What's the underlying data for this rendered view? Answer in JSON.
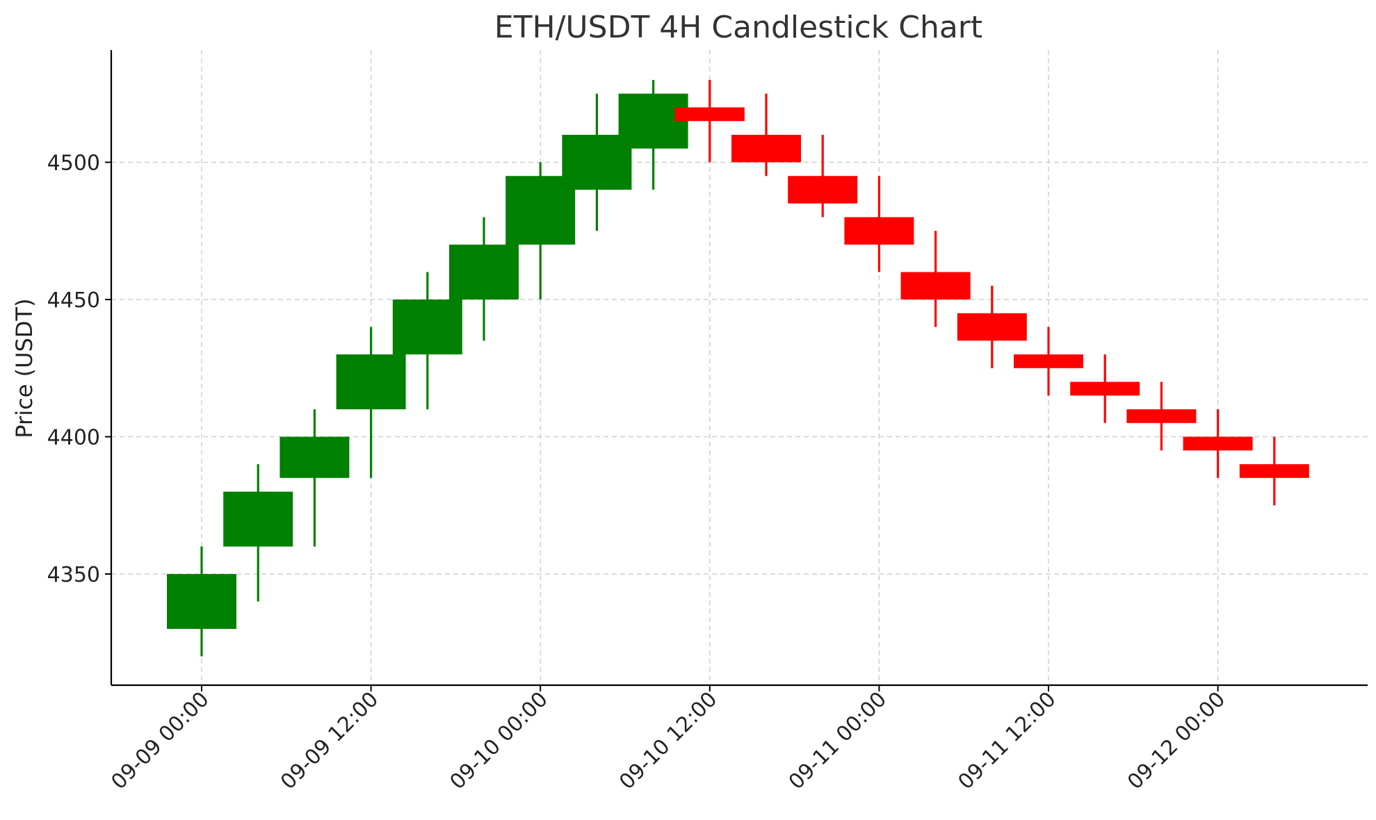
{
  "chart_data": {
    "type": "candlestick",
    "title": "ETH/USDT 4H Candlestick Chart",
    "xlabel": "",
    "ylabel": "Price (USDT)",
    "ylim": [
      4310,
      4540
    ],
    "y_ticks": [
      4350,
      4400,
      4450,
      4500
    ],
    "x_ticks": [
      "09-09 00:00",
      "09-09 12:00",
      "09-10 00:00",
      "09-10 12:00",
      "09-11 00:00",
      "09-11 12:00",
      "09-12 00:00"
    ],
    "x_tick_hours": [
      0,
      12,
      24,
      36,
      48,
      60,
      72
    ],
    "interval_hours": 4,
    "grid": true,
    "up_color": "#008000",
    "down_color": "#ff0000",
    "candles": [
      {
        "time": "09-09 00:00",
        "open": 4330,
        "high": 4360,
        "low": 4320,
        "close": 4350
      },
      {
        "time": "09-09 04:00",
        "open": 4360,
        "high": 4390,
        "low": 4340,
        "close": 4380
      },
      {
        "time": "09-09 08:00",
        "open": 4385,
        "high": 4410,
        "low": 4360,
        "close": 4400
      },
      {
        "time": "09-09 12:00",
        "open": 4410,
        "high": 4440,
        "low": 4385,
        "close": 4430
      },
      {
        "time": "09-09 16:00",
        "open": 4430,
        "high": 4460,
        "low": 4410,
        "close": 4450
      },
      {
        "time": "09-09 20:00",
        "open": 4450,
        "high": 4480,
        "low": 4435,
        "close": 4470
      },
      {
        "time": "09-10 00:00",
        "open": 4470,
        "high": 4500,
        "low": 4450,
        "close": 4495
      },
      {
        "time": "09-10 04:00",
        "open": 4490,
        "high": 4525,
        "low": 4475,
        "close": 4510
      },
      {
        "time": "09-10 08:00",
        "open": 4505,
        "high": 4530,
        "low": 4490,
        "close": 4525
      },
      {
        "time": "09-10 12:00",
        "open": 4520,
        "high": 4530,
        "low": 4500,
        "close": 4515
      },
      {
        "time": "09-10 16:00",
        "open": 4510,
        "high": 4525,
        "low": 4495,
        "close": 4500
      },
      {
        "time": "09-10 20:00",
        "open": 4495,
        "high": 4510,
        "low": 4480,
        "close": 4485
      },
      {
        "time": "09-11 00:00",
        "open": 4480,
        "high": 4495,
        "low": 4460,
        "close": 4470
      },
      {
        "time": "09-11 04:00",
        "open": 4460,
        "high": 4475,
        "low": 4440,
        "close": 4450
      },
      {
        "time": "09-11 08:00",
        "open": 4445,
        "high": 4455,
        "low": 4425,
        "close": 4435
      },
      {
        "time": "09-11 12:00",
        "open": 4430,
        "high": 4440,
        "low": 4415,
        "close": 4425
      },
      {
        "time": "09-11 16:00",
        "open": 4420,
        "high": 4430,
        "low": 4405,
        "close": 4415
      },
      {
        "time": "09-11 20:00",
        "open": 4410,
        "high": 4420,
        "low": 4395,
        "close": 4405
      },
      {
        "time": "09-12 00:00",
        "open": 4400,
        "high": 4410,
        "low": 4385,
        "close": 4395
      },
      {
        "time": "09-12 04:00",
        "open": 4390,
        "high": 4400,
        "low": 4375,
        "close": 4385
      }
    ]
  }
}
